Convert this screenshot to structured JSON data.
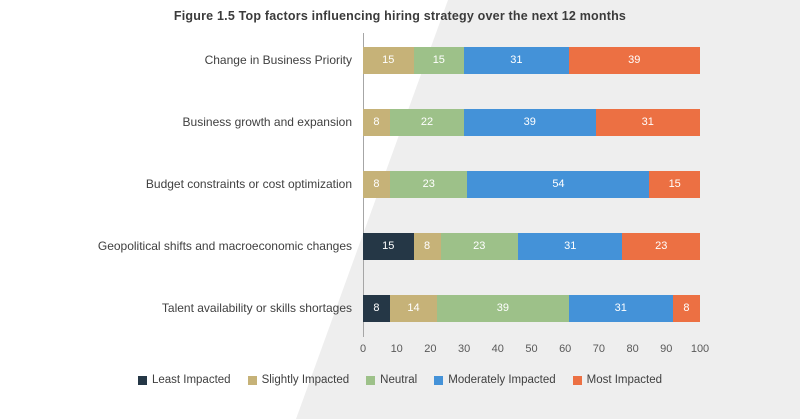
{
  "title": "Figure 1.5 Top factors influencing hiring strategy over the next 12 months",
  "chart_data": {
    "type": "bar",
    "orientation": "horizontal",
    "stacked": true,
    "title": "Figure 1.5 Top factors influencing hiring strategy over the next 12 months",
    "categories": [
      "Change in Business Priority",
      "Business growth and expansion",
      "Budget constraints or cost optimization",
      "Geopolitical shifts and macroeconomic changes",
      "Talent availability or skills shortages"
    ],
    "series": [
      {
        "name": "Least Impacted",
        "color": "#253746",
        "values": [
          0,
          0,
          0,
          15,
          8
        ]
      },
      {
        "name": "Slightly Impacted",
        "color": "#c6b278",
        "values": [
          15,
          8,
          8,
          8,
          14
        ]
      },
      {
        "name": "Neutral",
        "color": "#9dc189",
        "values": [
          15,
          22,
          23,
          23,
          39
        ]
      },
      {
        "name": "Moderately Impacted",
        "color": "#4492d8",
        "values": [
          31,
          39,
          54,
          31,
          31
        ]
      },
      {
        "name": "Most Impacted",
        "color": "#ec7043",
        "values": [
          39,
          31,
          15,
          23,
          8
        ]
      }
    ],
    "xlim": [
      0,
      100
    ],
    "x_ticks": [
      0,
      10,
      20,
      30,
      40,
      50,
      60,
      70,
      80,
      90,
      100
    ],
    "grid": false,
    "legend_position": "bottom",
    "value_labels": "inside-white"
  }
}
